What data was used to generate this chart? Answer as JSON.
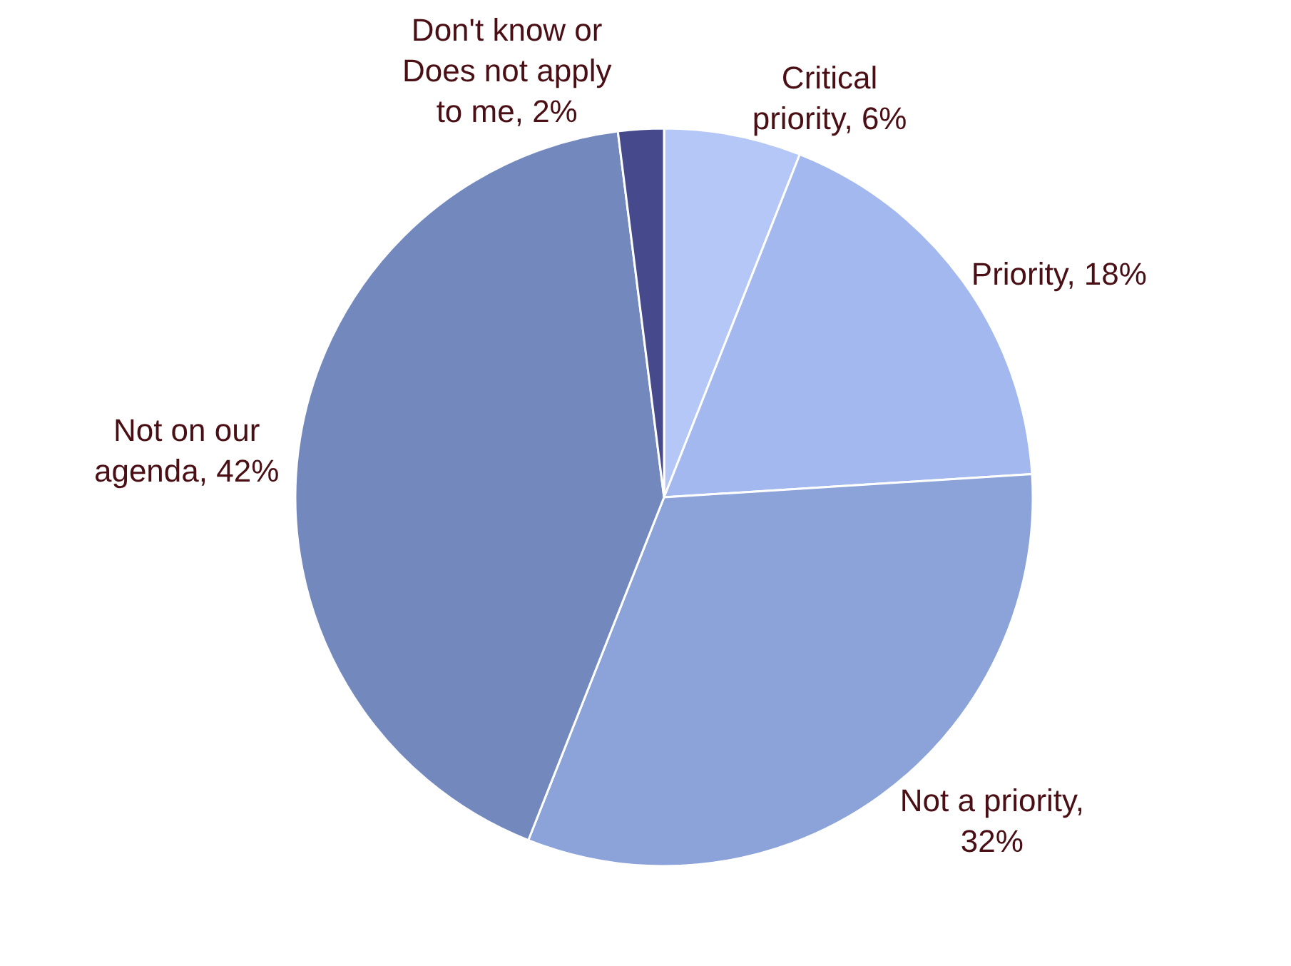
{
  "chart_data": {
    "type": "pie",
    "categories": [
      "Critical priority, 6%",
      "Priority, 18%",
      "Not a priority, 32%",
      "Not on our agenda, 42%",
      "Don't know or Does not apply to me, 2%"
    ],
    "values": [
      6,
      18,
      32,
      42,
      2
    ],
    "colors": [
      "#b4c7f7",
      "#a3b8ee",
      "#8ba3d8",
      "#7389be",
      "#464a8c"
    ],
    "legend": false
  }
}
